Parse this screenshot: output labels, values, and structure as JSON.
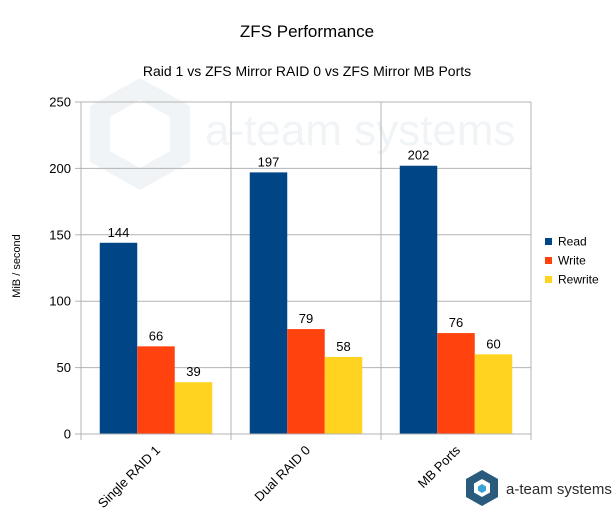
{
  "chart_data": {
    "type": "bar",
    "title": "ZFS Performance",
    "subtitle": "Raid 1 vs ZFS Mirror RAID 0 vs ZFS Mirror MB Ports",
    "ylabel": "MiB / second",
    "xlabel": "",
    "ylim": [
      0,
      250
    ],
    "yticks": [
      0,
      50,
      100,
      150,
      200,
      250
    ],
    "grid": true,
    "legend_position": "right",
    "categories": [
      "Single RAID 1",
      "Dual RAID 0",
      "MB Ports"
    ],
    "series": [
      {
        "name": "Read",
        "color": "#004586",
        "values": [
          144,
          197,
          202
        ]
      },
      {
        "name": "Write",
        "color": "#ff420e",
        "values": [
          66,
          79,
          76
        ]
      },
      {
        "name": "Rewrite",
        "color": "#ffd320",
        "values": [
          39,
          58,
          60
        ]
      }
    ]
  },
  "watermark": {
    "text": "a-team systems",
    "icon": "cube-logo-icon"
  },
  "logo": {
    "text": "a-team systems",
    "icon": "cube-logo-icon",
    "colors": [
      "#2a5b7c",
      "#3aa3d5"
    ]
  }
}
